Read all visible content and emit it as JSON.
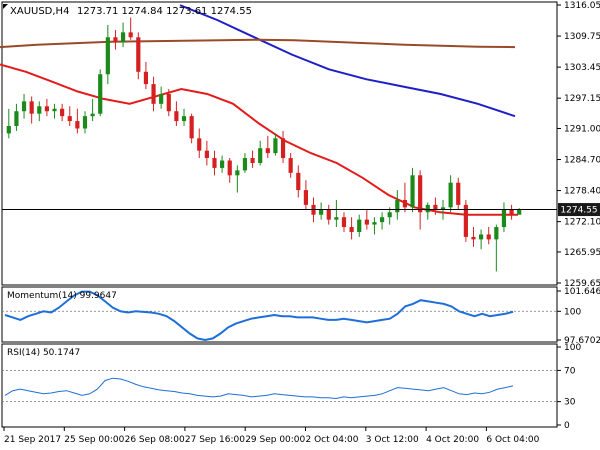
{
  "header": {
    "symbol": "XAUUSD,H4",
    "ohlc": "1273.71 1274.84 1273.61 1274.55"
  },
  "colors": {
    "bull": "#1b8a1b",
    "bear": "#d42020",
    "sma_fast": "#e31b1b",
    "sma_mid": "#1f1fc7",
    "sma_slow": "#9a4a28",
    "osc": "#1e6fd9",
    "price_tag_bg": "#1a1a1a",
    "grid": "#000000"
  },
  "main_panel": {
    "y_ticks": [
      "1316.05",
      "1309.75",
      "1303.45",
      "1297.15",
      "1291.00",
      "1284.70",
      "1278.40",
      "1272.10",
      "1265.95",
      "1259.65"
    ],
    "current_price": "1274.55"
  },
  "momentum_panel": {
    "label": "Momentum(14) 99.9647",
    "y_ticks": [
      "101.6461",
      "100",
      "97.6702"
    ]
  },
  "rsi_panel": {
    "label": "RSI(14) 50.1747",
    "y_ticks": [
      "100",
      "70",
      "30",
      "0"
    ]
  },
  "x_axis": {
    "labels": [
      "21 Sep 2017",
      "25 Sep 00:00",
      "26 Sep 08:00",
      "27 Sep 16:00",
      "29 Sep 00:00",
      "2 Oct 04:00",
      "3 Oct 12:00",
      "4 Oct 20:00",
      "6 Oct 04:00"
    ]
  },
  "chart_data": {
    "type": "candlestick",
    "instrument": "XAUUSD",
    "timeframe": "H4",
    "ylim": [
      1259.65,
      1316.05
    ],
    "candles": [
      {
        "o": 1290.0,
        "h": 1295.0,
        "l": 1289.0,
        "c": 1291.5
      },
      {
        "o": 1291.5,
        "h": 1296.0,
        "l": 1290.5,
        "c": 1294.5
      },
      {
        "o": 1294.5,
        "h": 1298.0,
        "l": 1293.0,
        "c": 1296.5
      },
      {
        "o": 1296.5,
        "h": 1297.5,
        "l": 1292.0,
        "c": 1294.0
      },
      {
        "o": 1294.0,
        "h": 1296.5,
        "l": 1292.5,
        "c": 1295.5
      },
      {
        "o": 1295.5,
        "h": 1297.0,
        "l": 1293.5,
        "c": 1294.5
      },
      {
        "o": 1294.5,
        "h": 1296.0,
        "l": 1293.0,
        "c": 1295.0
      },
      {
        "o": 1295.0,
        "h": 1296.0,
        "l": 1292.5,
        "c": 1293.5
      },
      {
        "o": 1293.5,
        "h": 1295.5,
        "l": 1291.5,
        "c": 1292.5
      },
      {
        "o": 1292.5,
        "h": 1295.0,
        "l": 1290.0,
        "c": 1291.0
      },
      {
        "o": 1291.0,
        "h": 1294.5,
        "l": 1290.0,
        "c": 1293.5
      },
      {
        "o": 1293.5,
        "h": 1297.0,
        "l": 1292.5,
        "c": 1294.0
      },
      {
        "o": 1294.0,
        "h": 1303.0,
        "l": 1293.5,
        "c": 1302.0
      },
      {
        "o": 1302.0,
        "h": 1312.0,
        "l": 1300.0,
        "c": 1309.5
      },
      {
        "o": 1309.5,
        "h": 1311.0,
        "l": 1307.0,
        "c": 1308.5
      },
      {
        "o": 1308.5,
        "h": 1312.5,
        "l": 1307.5,
        "c": 1310.5
      },
      {
        "o": 1310.5,
        "h": 1313.5,
        "l": 1309.0,
        "c": 1309.5
      },
      {
        "o": 1309.5,
        "h": 1310.5,
        "l": 1301.0,
        "c": 1302.5
      },
      {
        "o": 1302.5,
        "h": 1304.5,
        "l": 1299.0,
        "c": 1300.0
      },
      {
        "o": 1300.0,
        "h": 1301.5,
        "l": 1294.5,
        "c": 1296.0
      },
      {
        "o": 1296.0,
        "h": 1299.5,
        "l": 1295.0,
        "c": 1298.0
      },
      {
        "o": 1298.0,
        "h": 1299.0,
        "l": 1293.5,
        "c": 1294.5
      },
      {
        "o": 1294.5,
        "h": 1296.5,
        "l": 1291.5,
        "c": 1292.5
      },
      {
        "o": 1292.5,
        "h": 1295.0,
        "l": 1291.5,
        "c": 1293.5
      },
      {
        "o": 1293.5,
        "h": 1294.0,
        "l": 1288.0,
        "c": 1289.0
      },
      {
        "o": 1289.0,
        "h": 1291.0,
        "l": 1285.0,
        "c": 1286.5
      },
      {
        "o": 1286.5,
        "h": 1288.5,
        "l": 1283.5,
        "c": 1285.0
      },
      {
        "o": 1285.0,
        "h": 1286.5,
        "l": 1281.5,
        "c": 1283.0
      },
      {
        "o": 1283.0,
        "h": 1285.5,
        "l": 1282.0,
        "c": 1284.5
      },
      {
        "o": 1284.5,
        "h": 1285.0,
        "l": 1280.0,
        "c": 1281.5
      },
      {
        "o": 1281.5,
        "h": 1283.5,
        "l": 1278.0,
        "c": 1282.5
      },
      {
        "o": 1282.5,
        "h": 1286.0,
        "l": 1282.0,
        "c": 1285.0
      },
      {
        "o": 1285.0,
        "h": 1286.5,
        "l": 1283.0,
        "c": 1284.0
      },
      {
        "o": 1284.0,
        "h": 1288.5,
        "l": 1283.5,
        "c": 1287.0
      },
      {
        "o": 1287.0,
        "h": 1289.5,
        "l": 1285.0,
        "c": 1286.0
      },
      {
        "o": 1286.0,
        "h": 1290.0,
        "l": 1285.5,
        "c": 1289.0
      },
      {
        "o": 1289.0,
        "h": 1290.5,
        "l": 1284.0,
        "c": 1285.0
      },
      {
        "o": 1285.0,
        "h": 1286.0,
        "l": 1281.0,
        "c": 1282.0
      },
      {
        "o": 1282.0,
        "h": 1283.5,
        "l": 1277.0,
        "c": 1278.5
      },
      {
        "o": 1278.5,
        "h": 1280.5,
        "l": 1274.5,
        "c": 1275.5
      },
      {
        "o": 1275.5,
        "h": 1277.0,
        "l": 1272.0,
        "c": 1273.5
      },
      {
        "o": 1273.5,
        "h": 1276.0,
        "l": 1272.5,
        "c": 1274.5
      },
      {
        "o": 1274.5,
        "h": 1275.5,
        "l": 1271.5,
        "c": 1272.5
      },
      {
        "o": 1272.5,
        "h": 1276.5,
        "l": 1271.0,
        "c": 1273.0
      },
      {
        "o": 1273.0,
        "h": 1274.0,
        "l": 1270.0,
        "c": 1271.0
      },
      {
        "o": 1271.0,
        "h": 1273.0,
        "l": 1268.5,
        "c": 1270.0
      },
      {
        "o": 1270.0,
        "h": 1273.5,
        "l": 1269.0,
        "c": 1272.5
      },
      {
        "o": 1272.5,
        "h": 1274.5,
        "l": 1270.5,
        "c": 1271.5
      },
      {
        "o": 1271.5,
        "h": 1273.0,
        "l": 1269.5,
        "c": 1272.0
      },
      {
        "o": 1272.0,
        "h": 1274.0,
        "l": 1270.5,
        "c": 1273.0
      },
      {
        "o": 1273.0,
        "h": 1275.0,
        "l": 1271.5,
        "c": 1274.0
      },
      {
        "o": 1274.0,
        "h": 1278.5,
        "l": 1272.5,
        "c": 1276.5
      },
      {
        "o": 1276.5,
        "h": 1280.0,
        "l": 1274.0,
        "c": 1275.0
      },
      {
        "o": 1275.0,
        "h": 1283.0,
        "l": 1274.0,
        "c": 1281.5
      },
      {
        "o": 1281.5,
        "h": 1282.5,
        "l": 1270.5,
        "c": 1274.0
      },
      {
        "o": 1274.0,
        "h": 1276.0,
        "l": 1272.5,
        "c": 1275.5
      },
      {
        "o": 1275.5,
        "h": 1277.0,
        "l": 1273.5,
        "c": 1274.5
      },
      {
        "o": 1274.5,
        "h": 1276.5,
        "l": 1272.5,
        "c": 1275.0
      },
      {
        "o": 1275.0,
        "h": 1281.5,
        "l": 1274.0,
        "c": 1280.0
      },
      {
        "o": 1280.0,
        "h": 1281.0,
        "l": 1274.5,
        "c": 1275.5
      },
      {
        "o": 1275.5,
        "h": 1276.5,
        "l": 1268.0,
        "c": 1269.0
      },
      {
        "o": 1269.0,
        "h": 1271.0,
        "l": 1267.0,
        "c": 1268.5
      },
      {
        "o": 1268.5,
        "h": 1270.5,
        "l": 1266.5,
        "c": 1269.5
      },
      {
        "o": 1269.5,
        "h": 1271.0,
        "l": 1267.5,
        "c": 1268.5
      },
      {
        "o": 1268.5,
        "h": 1271.5,
        "l": 1262.0,
        "c": 1271.0
      },
      {
        "o": 1271.0,
        "h": 1276.0,
        "l": 1270.0,
        "c": 1274.5
      },
      {
        "o": 1274.5,
        "h": 1275.5,
        "l": 1272.5,
        "c": 1273.5
      },
      {
        "o": 1273.5,
        "h": 1274.84,
        "l": 1273.61,
        "c": 1274.55
      }
    ],
    "series": [
      {
        "values": [
          1304.0,
          1302.5,
          1300.5,
          1298.5,
          1297.0,
          1296.0,
          1297.5,
          1299.0,
          1298.0,
          1296.0,
          1292.0,
          1288.5,
          1286.0,
          1284.0,
          1281.0,
          1277.5,
          1275.0,
          1274.0,
          1273.5,
          1273.5,
          1273.5
        ]
      },
      {
        "values": [
          1316.0,
          1313.0,
          1309.5,
          1306.0,
          1303.0,
          1301.0,
          1299.5,
          1298.0,
          1296.0,
          1293.5
        ]
      },
      {
        "values": [
          1307.5,
          1308.0,
          1308.3,
          1308.6,
          1308.7,
          1308.8,
          1308.9,
          1309.0,
          1308.9,
          1308.6,
          1308.3,
          1308.0,
          1307.8,
          1307.6,
          1307.5
        ]
      }
    ],
    "momentum": [
      99.7,
      99.5,
      99.3,
      99.6,
      99.8,
      100.0,
      99.9,
      100.3,
      100.8,
      101.3,
      101.6,
      101.6,
      101.3,
      100.8,
      100.3,
      100.0,
      99.9,
      100.0,
      99.95,
      99.9,
      99.8,
      99.6,
      99.2,
      98.7,
      98.2,
      97.8,
      97.67,
      97.8,
      98.2,
      98.7,
      99.0,
      99.2,
      99.4,
      99.5,
      99.6,
      99.7,
      99.6,
      99.6,
      99.5,
      99.5,
      99.5,
      99.4,
      99.3,
      99.3,
      99.4,
      99.3,
      99.2,
      99.1,
      99.2,
      99.3,
      99.4,
      99.8,
      100.4,
      100.6,
      100.9,
      100.8,
      100.7,
      100.6,
      100.4,
      100.0,
      99.8,
      99.6,
      99.8,
      99.6,
      99.7,
      99.8,
      99.96
    ],
    "rsi": [
      38,
      44,
      46,
      44,
      42,
      40,
      41,
      43,
      44,
      41,
      38,
      40,
      46,
      57,
      60,
      59,
      56,
      52,
      49,
      47,
      45,
      44,
      43,
      41,
      40,
      38,
      37,
      36,
      37,
      40,
      39,
      38,
      36,
      37,
      38,
      40,
      39,
      38,
      37,
      36,
      36,
      35,
      35,
      34,
      36,
      35,
      36,
      37,
      38,
      40,
      44,
      48,
      47,
      46,
      45,
      44,
      46,
      48,
      44,
      40,
      39,
      41,
      40,
      42,
      46,
      48,
      50.17
    ]
  }
}
